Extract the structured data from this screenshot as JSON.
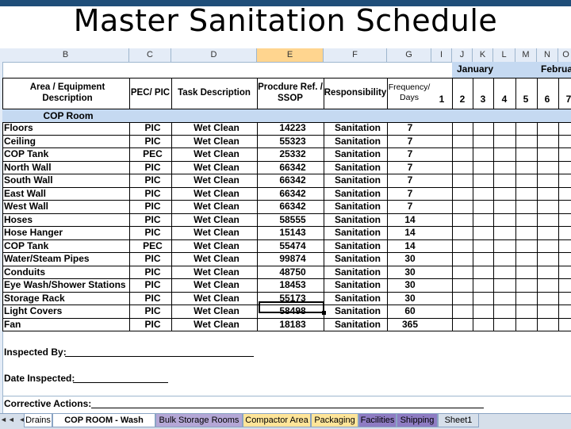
{
  "title": "Master Sanitation Schedule",
  "columns": [
    "B",
    "C",
    "D",
    "E",
    "F",
    "G",
    "I",
    "J",
    "K",
    "L",
    "M",
    "N",
    "O"
  ],
  "selected_column": "E",
  "months": [
    "January",
    "Februar"
  ],
  "headers": {
    "area": "Area / Equipment Description",
    "pec": "PEC/ PIC",
    "task": "Task Description",
    "proc_line1": "Procdure Ref. /",
    "proc_line2": "SSOP",
    "resp": "Responsibility",
    "freq_line1": "Frequency/",
    "freq_line2": "Days"
  },
  "days": [
    "1",
    "2",
    "3",
    "4",
    "5",
    "6",
    "7"
  ],
  "section": "COP Room",
  "rows": [
    {
      "area": "Floors",
      "pec": "PIC",
      "task": "Wet Clean",
      "proc": "14223",
      "resp": "Sanitation",
      "freq": "7"
    },
    {
      "area": "Ceiling",
      "pec": "PIC",
      "task": "Wet Clean",
      "proc": "55323",
      "resp": "Sanitation",
      "freq": "7"
    },
    {
      "area": "COP Tank",
      "pec": "PEC",
      "task": "Wet Clean",
      "proc": "25332",
      "resp": "Sanitation",
      "freq": "7"
    },
    {
      "area": "North Wall",
      "pec": "PIC",
      "task": "Wet Clean",
      "proc": "66342",
      "resp": "Sanitation",
      "freq": "7"
    },
    {
      "area": "South Wall",
      "pec": "PIC",
      "task": "Wet Clean",
      "proc": "66342",
      "resp": "Sanitation",
      "freq": "7"
    },
    {
      "area": "East Wall",
      "pec": "PIC",
      "task": "Wet Clean",
      "proc": "66342",
      "resp": "Sanitation",
      "freq": "7"
    },
    {
      "area": "West Wall",
      "pec": "PIC",
      "task": "Wet Clean",
      "proc": "66342",
      "resp": "Sanitation",
      "freq": "7"
    },
    {
      "area": "Hoses",
      "pec": "PIC",
      "task": "Wet Clean",
      "proc": "58555",
      "resp": "Sanitation",
      "freq": "14"
    },
    {
      "area": "Hose Hanger",
      "pec": "PIC",
      "task": "Wet Clean",
      "proc": "15143",
      "resp": "Sanitation",
      "freq": "14"
    },
    {
      "area": "COP Tank",
      "pec": "PEC",
      "task": "Wet Clean",
      "proc": "55474",
      "resp": "Sanitation",
      "freq": "14"
    },
    {
      "area": "Water/Steam Pipes",
      "pec": "PIC",
      "task": "Wet Clean",
      "proc": "99874",
      "resp": "Sanitation",
      "freq": "30"
    },
    {
      "area": "Conduits",
      "pec": "PIC",
      "task": "Wet Clean",
      "proc": "48750",
      "resp": "Sanitation",
      "freq": "30"
    },
    {
      "area": "Eye Wash/Shower Stations",
      "pec": "PIC",
      "task": "Wet Clean",
      "proc": "18453",
      "resp": "Sanitation",
      "freq": "30"
    },
    {
      "area": "Storage Rack",
      "pec": "PIC",
      "task": "Wet Clean",
      "proc": "55173",
      "resp": "Sanitation",
      "freq": "30"
    },
    {
      "area": "Light Covers",
      "pec": "PIC",
      "task": "Wet Clean",
      "proc": "58498",
      "resp": "Sanitation",
      "freq": "60"
    },
    {
      "area": "Fan",
      "pec": "PIC",
      "task": "Wet Clean",
      "proc": "18183",
      "resp": "Sanitation",
      "freq": "365"
    }
  ],
  "footer": {
    "inspected_by": "Inspected By:",
    "date_inspected": "Date Inspected:",
    "corrective_actions": "Corrective  Actions:"
  },
  "tabs": [
    {
      "label": "Drains",
      "color": "#ffffff"
    },
    {
      "label": "COP ROOM - Wash Room",
      "color": "#ffffff",
      "active": true
    },
    {
      "label": "Bulk Storage Rooms",
      "color": "#b4a7d6"
    },
    {
      "label": "Compactor Area",
      "color": "#ffe599"
    },
    {
      "label": "Packaging",
      "color": "#ffe599"
    },
    {
      "label": "Facilities",
      "color": "#8e7cc3"
    },
    {
      "label": "Shipping",
      "color": "#8e7cc3"
    },
    {
      "label": "Sheet1",
      "color": "#d6dfea"
    }
  ],
  "nav_buttons": "◄◄ ◄ ► ►►"
}
